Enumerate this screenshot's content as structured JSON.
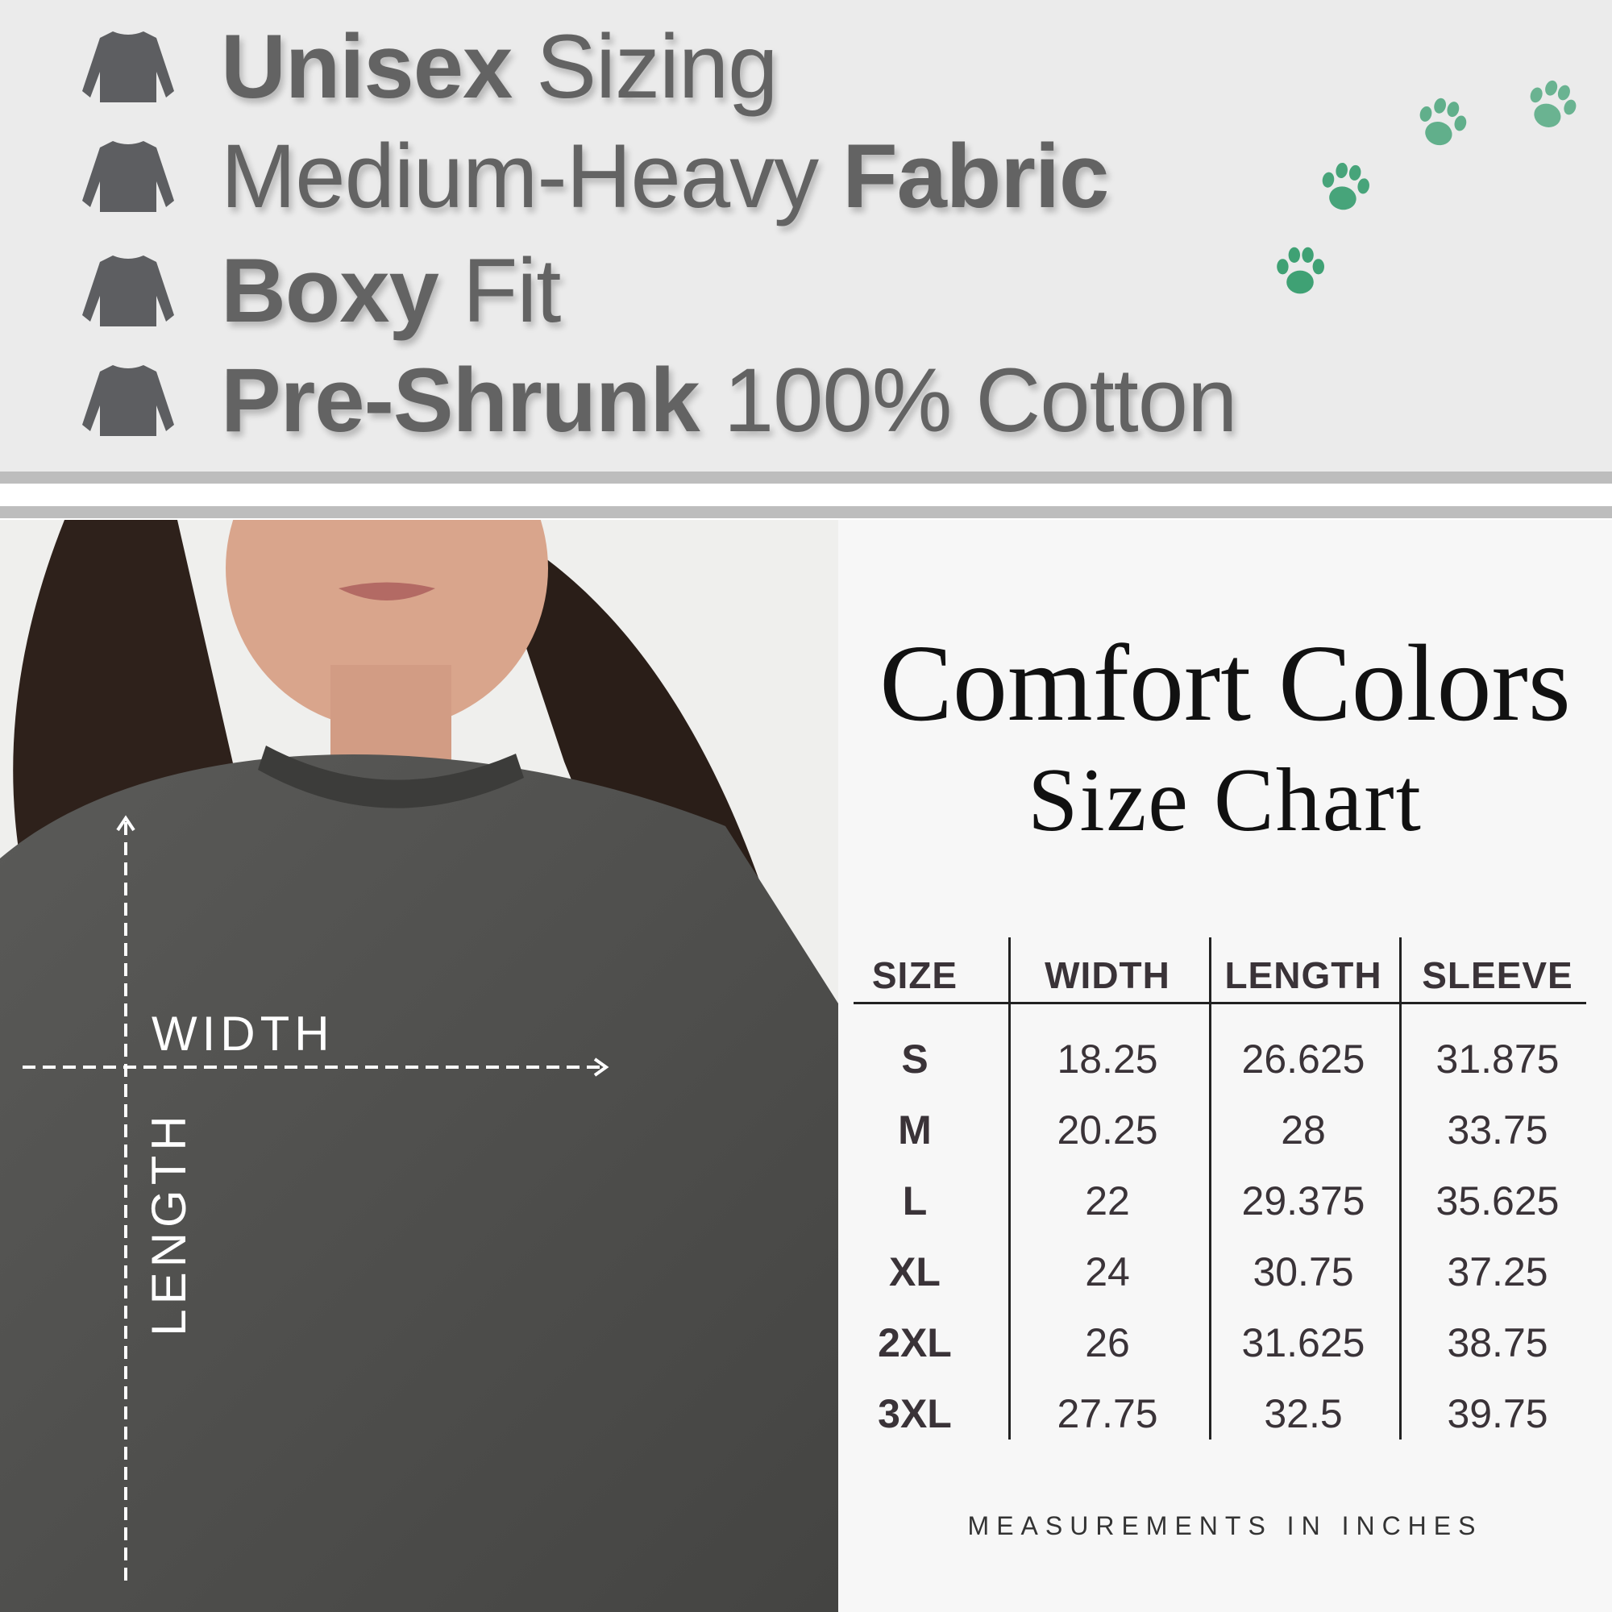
{
  "features": [
    {
      "bold": "Unisex",
      "light": " Sizing",
      "order": "bold-first"
    },
    {
      "light": "Medium-Heavy ",
      "bold": "Fabric",
      "order": "light-first"
    },
    {
      "bold": "Boxy",
      "light": " Fit",
      "order": "bold-first"
    },
    {
      "bold": "Pre-Shrunk",
      "light": " 100% Cotton",
      "order": "bold-first"
    }
  ],
  "icons": {
    "feature": "sweatshirt-icon",
    "decor": "paw-print-icon"
  },
  "colors": {
    "paw": "#3fa174",
    "text": "#636363",
    "panel": "#ebebeb"
  },
  "photo": {
    "width_label": "WIDTH",
    "length_label": "LENGTH"
  },
  "chart": {
    "brand": "Comfort Colors",
    "title": "Size Chart",
    "footer": "MEASUREMENTS IN INCHES"
  },
  "chart_data": {
    "type": "table",
    "columns": [
      "SIZE",
      "WIDTH",
      "LENGTH",
      "SLEEVE"
    ],
    "rows": [
      [
        "S",
        "18.25",
        "26.625",
        "31.875"
      ],
      [
        "M",
        "20.25",
        "28",
        "33.75"
      ],
      [
        "L",
        "22",
        "29.375",
        "35.625"
      ],
      [
        "XL",
        "24",
        "30.75",
        "37.25"
      ],
      [
        "2XL",
        "26",
        "31.625",
        "38.75"
      ],
      [
        "3XL",
        "27.75",
        "32.5",
        "39.75"
      ]
    ]
  }
}
